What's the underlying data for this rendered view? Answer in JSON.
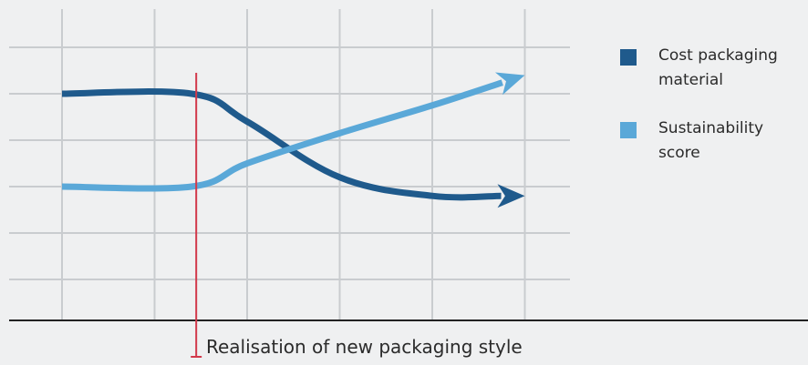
{
  "chart_data": {
    "type": "line",
    "title": "",
    "xlabel": "",
    "ylabel": "",
    "grid": true,
    "axis_ticks": false,
    "legend_position": "right",
    "series": [
      {
        "name": "Cost packaging material",
        "color": "#1f5a8c",
        "points": [
          [
            1,
            5
          ],
          [
            2.4,
            5
          ],
          [
            3,
            4.4
          ],
          [
            4,
            3.2
          ],
          [
            5,
            2.8
          ],
          [
            6,
            2.8
          ]
        ],
        "end_arrow": true
      },
      {
        "name": "Sustainability score",
        "color": "#5aa8d8",
        "points": [
          [
            1,
            3
          ],
          [
            2.4,
            3
          ],
          [
            3,
            3.5
          ],
          [
            4,
            4.15
          ],
          [
            5,
            4.75
          ],
          [
            6,
            5.4
          ]
        ],
        "end_arrow": true
      }
    ],
    "annotations": [
      {
        "text": "Realisation of new packaging style",
        "x": 2.45,
        "color": "#d2384a"
      }
    ]
  },
  "legend": {
    "items": [
      {
        "label": "Cost packaging\nmaterial",
        "color": "#1f5a8c"
      },
      {
        "label": "Sustainability\nscore",
        "color": "#5aa8d8"
      }
    ]
  },
  "annotation_label": "Realisation of new packaging style"
}
